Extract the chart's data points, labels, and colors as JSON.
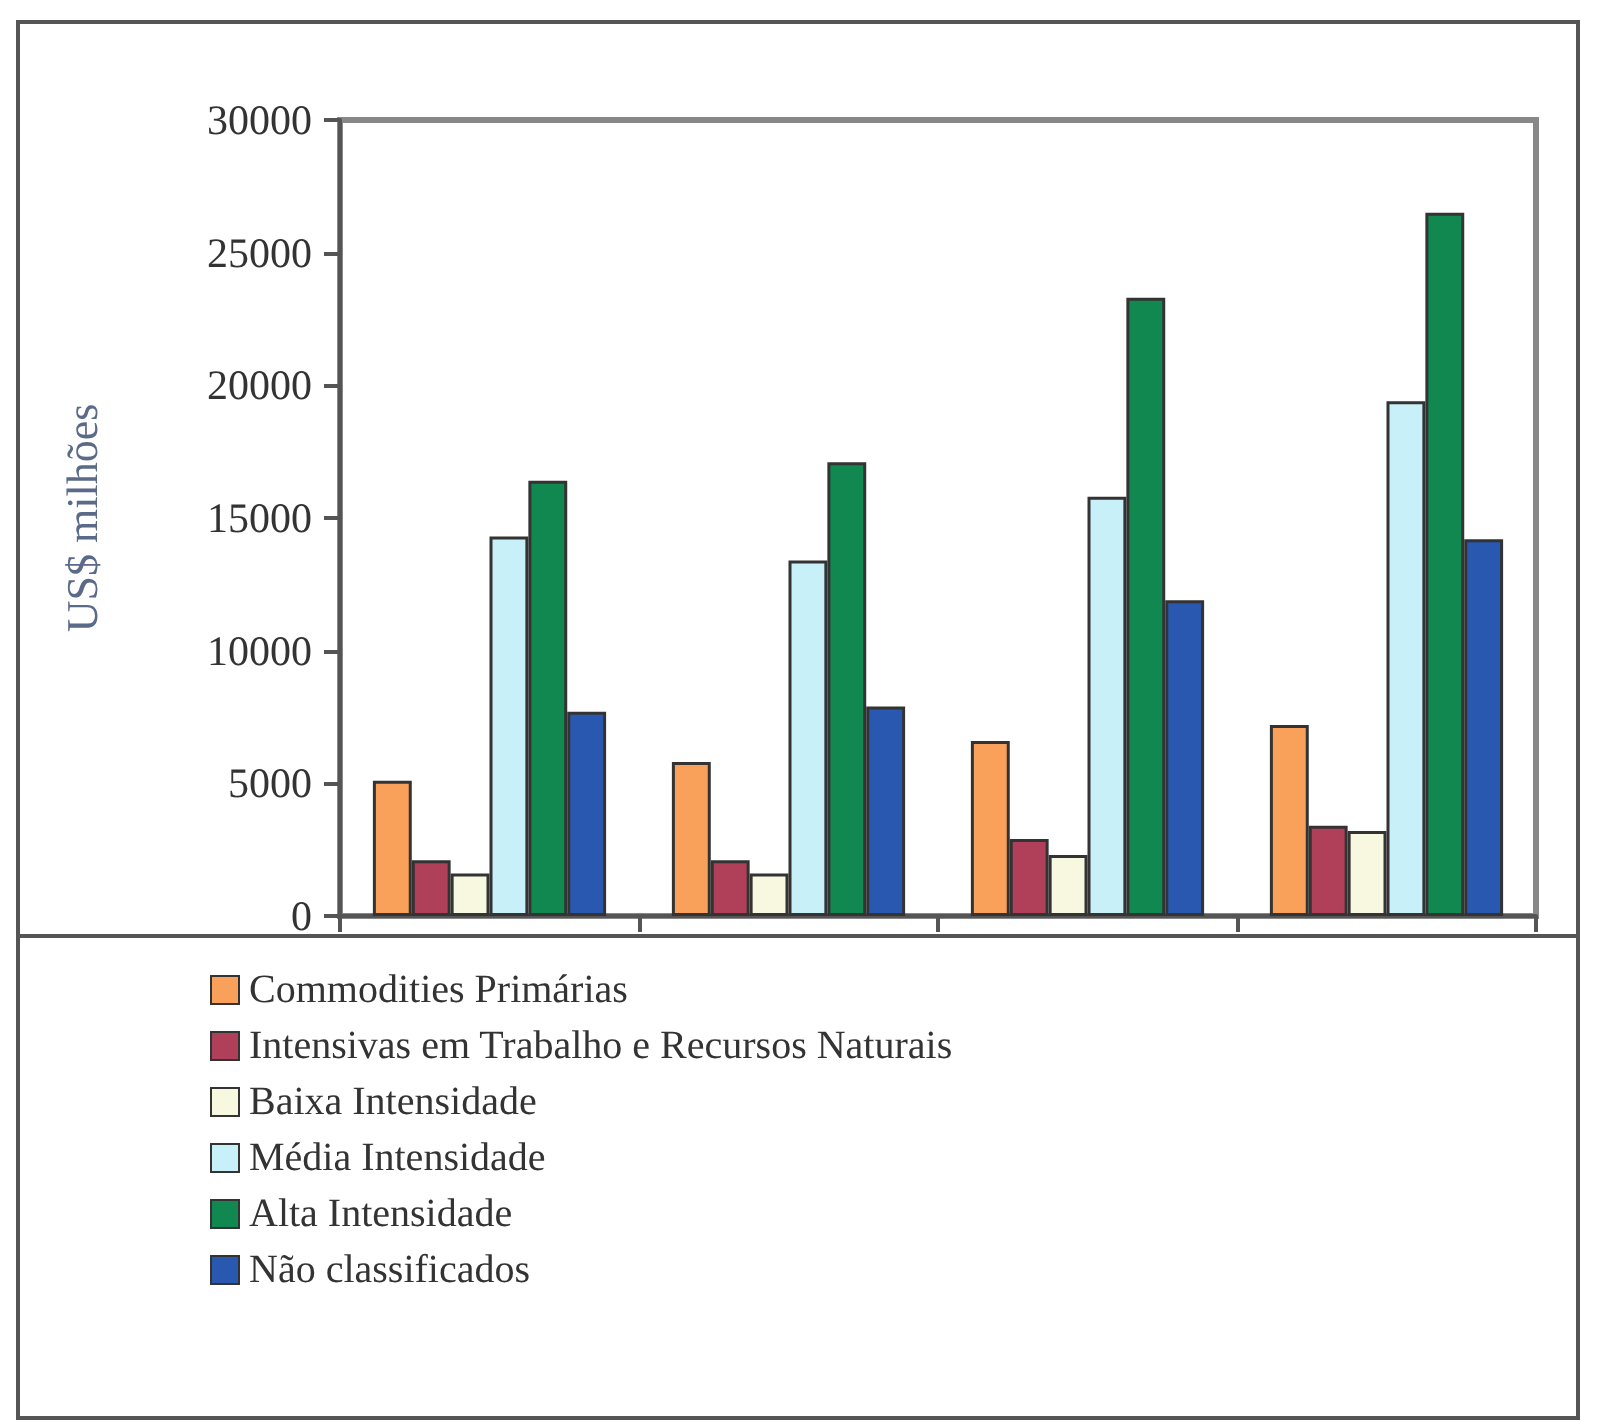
{
  "chart_data": {
    "type": "bar",
    "ylabel": "US$ milhões",
    "categories": [
      null,
      null,
      null,
      null
    ],
    "series": [
      {
        "name": "Commodities Primárias",
        "color": "#f9a05a",
        "values": [
          5100,
          5800,
          6600,
          7200
        ]
      },
      {
        "name": "Intensivas em Trabalho e Recursos Naturais",
        "color": "#b0405a",
        "values": [
          2100,
          2100,
          2900,
          3400
        ]
      },
      {
        "name": "Baixa Intensidade",
        "color": "#f8f8e0",
        "values": [
          1600,
          1600,
          2300,
          3200
        ]
      },
      {
        "name": "Média Intensidade",
        "color": "#c8f0f8",
        "values": [
          14300,
          13400,
          15800,
          19400
        ]
      },
      {
        "name": "Alta Intensidade",
        "color": "#108850",
        "values": [
          16400,
          17100,
          23300,
          26500
        ]
      },
      {
        "name": "Não classificados",
        "color": "#2858b0",
        "values": [
          7700,
          7900,
          11900,
          14200
        ]
      }
    ],
    "ylim": [
      0,
      30000
    ],
    "yticks": [
      0,
      5000,
      10000,
      15000,
      20000,
      25000,
      30000
    ],
    "grid": false,
    "legend": "bottom"
  }
}
